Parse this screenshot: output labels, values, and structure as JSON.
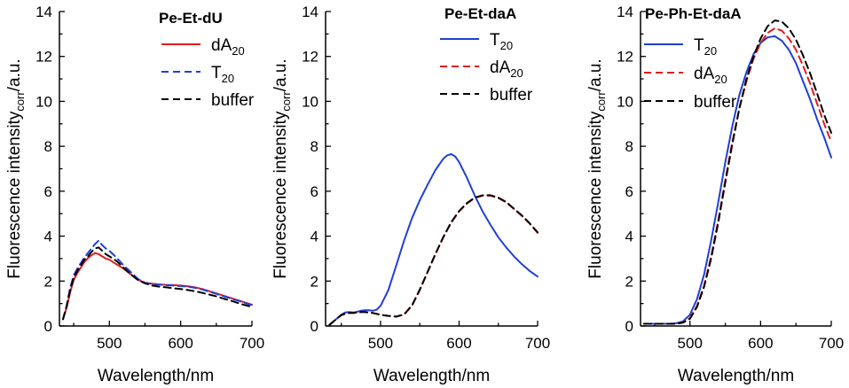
{
  "chart_data": [
    {
      "type": "line",
      "title": "Pe-Et-dU",
      "xlabel": "Wavelength/nm",
      "ylabel": "Fluorescence intensity",
      "ylabel_sub": "corr",
      "ylabel_unit": "/a.u.",
      "xlim": [
        430,
        700
      ],
      "ylim": [
        0,
        14
      ],
      "xticks": [
        500,
        600,
        700
      ],
      "yticks": [
        0,
        2,
        4,
        6,
        8,
        10,
        12,
        14
      ],
      "legend_position": "top-right",
      "series": [
        {
          "name": "dA",
          "sub": "20",
          "color": "#e31a1c",
          "dash": "solid",
          "x": [
            435,
            440,
            445,
            450,
            455,
            460,
            465,
            470,
            475,
            480,
            485,
            490,
            495,
            500,
            505,
            510,
            520,
            530,
            540,
            550,
            560,
            570,
            580,
            590,
            600,
            610,
            620,
            630,
            640,
            650,
            660,
            670,
            680,
            690,
            700
          ],
          "y": [
            0.3,
            0.8,
            1.5,
            2.05,
            2.35,
            2.6,
            2.85,
            3.02,
            3.15,
            3.25,
            3.2,
            3.1,
            3.0,
            2.95,
            2.85,
            2.75,
            2.55,
            2.3,
            2.05,
            1.93,
            1.88,
            1.85,
            1.83,
            1.82,
            1.8,
            1.77,
            1.72,
            1.65,
            1.55,
            1.45,
            1.35,
            1.25,
            1.15,
            1.05,
            0.95
          ]
        },
        {
          "name": "T",
          "sub": "20",
          "color": "#1f3fd6",
          "dash": "dashed",
          "x": [
            435,
            440,
            445,
            450,
            455,
            460,
            465,
            470,
            475,
            480,
            485,
            490,
            495,
            500,
            505,
            510,
            520,
            530,
            540,
            550,
            560,
            570,
            580,
            590,
            600,
            610,
            620,
            630,
            640,
            650,
            660,
            670,
            680,
            690,
            700
          ],
          "y": [
            0.3,
            0.9,
            1.7,
            2.25,
            2.55,
            2.8,
            3.05,
            3.25,
            3.45,
            3.65,
            3.8,
            3.6,
            3.45,
            3.35,
            3.2,
            3.05,
            2.7,
            2.4,
            2.1,
            1.92,
            1.87,
            1.84,
            1.82,
            1.8,
            1.78,
            1.75,
            1.7,
            1.63,
            1.53,
            1.43,
            1.33,
            1.23,
            1.13,
            1.03,
            0.93
          ]
        },
        {
          "name": "buffer",
          "sub": "",
          "color": "#000000",
          "dash": "dashed",
          "x": [
            435,
            440,
            445,
            450,
            455,
            460,
            465,
            470,
            475,
            480,
            485,
            490,
            495,
            500,
            505,
            510,
            520,
            530,
            540,
            550,
            560,
            570,
            580,
            590,
            600,
            610,
            620,
            630,
            640,
            650,
            660,
            670,
            680,
            690,
            700
          ],
          "y": [
            0.3,
            0.85,
            1.6,
            2.15,
            2.45,
            2.7,
            2.95,
            3.1,
            3.3,
            3.45,
            3.5,
            3.35,
            3.2,
            3.1,
            3.0,
            2.9,
            2.6,
            2.3,
            2.05,
            1.9,
            1.8,
            1.75,
            1.72,
            1.68,
            1.65,
            1.6,
            1.55,
            1.48,
            1.4,
            1.32,
            1.22,
            1.13,
            1.03,
            0.93,
            0.85
          ]
        }
      ]
    },
    {
      "type": "line",
      "title": "Pe-Et-daA",
      "xlabel": "Wavelength/nm",
      "ylabel": "Fluorescence intensity",
      "ylabel_sub": "corr",
      "ylabel_unit": "/a.u.",
      "xlim": [
        430,
        700
      ],
      "ylim": [
        0,
        14
      ],
      "xticks": [
        500,
        600,
        700
      ],
      "yticks": [
        0,
        2,
        4,
        6,
        8,
        10,
        12,
        14
      ],
      "legend_position": "top-right",
      "series": [
        {
          "name": "T",
          "sub": "20",
          "color": "#1f3fd6",
          "dash": "solid",
          "x": [
            435,
            440,
            445,
            450,
            455,
            460,
            465,
            470,
            475,
            480,
            485,
            490,
            495,
            500,
            510,
            520,
            530,
            540,
            550,
            560,
            570,
            580,
            585,
            590,
            595,
            600,
            610,
            620,
            630,
            640,
            650,
            660,
            670,
            680,
            690,
            700
          ],
          "y": [
            0.05,
            0.2,
            0.35,
            0.5,
            0.6,
            0.62,
            0.6,
            0.63,
            0.68,
            0.7,
            0.7,
            0.68,
            0.72,
            0.9,
            1.6,
            2.7,
            3.8,
            4.8,
            5.6,
            6.3,
            6.95,
            7.45,
            7.6,
            7.65,
            7.55,
            7.3,
            6.6,
            5.8,
            5.1,
            4.5,
            3.95,
            3.5,
            3.1,
            2.75,
            2.45,
            2.2
          ]
        },
        {
          "name": "dA",
          "sub": "20",
          "color": "#e31a1c",
          "dash": "dashed",
          "x": [
            435,
            440,
            445,
            450,
            455,
            460,
            465,
            470,
            475,
            480,
            485,
            490,
            500,
            510,
            520,
            530,
            540,
            550,
            560,
            570,
            580,
            590,
            600,
            610,
            620,
            630,
            640,
            650,
            660,
            670,
            680,
            690,
            700
          ],
          "y": [
            0.05,
            0.2,
            0.35,
            0.48,
            0.55,
            0.58,
            0.58,
            0.6,
            0.62,
            0.62,
            0.6,
            0.58,
            0.5,
            0.45,
            0.42,
            0.5,
            0.9,
            1.6,
            2.4,
            3.2,
            3.95,
            4.6,
            5.1,
            5.45,
            5.7,
            5.8,
            5.8,
            5.7,
            5.5,
            5.2,
            4.9,
            4.55,
            4.15
          ]
        },
        {
          "name": "buffer",
          "sub": "",
          "color": "#000000",
          "dash": "dashed",
          "x": [
            435,
            440,
            445,
            450,
            455,
            460,
            465,
            470,
            475,
            480,
            485,
            490,
            500,
            510,
            520,
            530,
            540,
            550,
            560,
            570,
            580,
            590,
            600,
            610,
            620,
            630,
            640,
            650,
            660,
            670,
            680,
            690,
            700
          ],
          "y": [
            0.05,
            0.2,
            0.35,
            0.48,
            0.55,
            0.58,
            0.58,
            0.6,
            0.62,
            0.62,
            0.6,
            0.58,
            0.5,
            0.45,
            0.42,
            0.52,
            0.92,
            1.62,
            2.42,
            3.22,
            3.97,
            4.62,
            5.12,
            5.47,
            5.72,
            5.82,
            5.82,
            5.72,
            5.52,
            5.22,
            4.92,
            4.57,
            4.17
          ]
        }
      ]
    },
    {
      "type": "line",
      "title": "Pe-Ph-Et-daA",
      "xlabel": "Wavelength/nm",
      "ylabel": "Fluorescence intensity",
      "ylabel_sub": "corr",
      "ylabel_unit": "/a.u.",
      "xlim": [
        430,
        700
      ],
      "ylim": [
        0,
        14
      ],
      "xticks": [
        500,
        600,
        700
      ],
      "yticks": [
        0,
        2,
        4,
        6,
        8,
        10,
        12,
        14
      ],
      "legend_position": "top-left",
      "series": [
        {
          "name": "T",
          "sub": "20",
          "color": "#1f3fd6",
          "dash": "solid",
          "x": [
            435,
            450,
            460,
            470,
            480,
            490,
            500,
            510,
            520,
            530,
            540,
            550,
            560,
            570,
            580,
            590,
            600,
            610,
            620,
            630,
            640,
            650,
            660,
            670,
            680,
            690,
            700
          ],
          "y": [
            0.1,
            0.1,
            0.1,
            0.1,
            0.12,
            0.2,
            0.5,
            1.2,
            2.3,
            3.8,
            5.5,
            7.3,
            8.9,
            10.3,
            11.3,
            12.1,
            12.6,
            12.85,
            12.9,
            12.7,
            12.3,
            11.7,
            10.9,
            10.1,
            9.2,
            8.4,
            7.5
          ]
        },
        {
          "name": "dA",
          "sub": "20",
          "color": "#e31a1c",
          "dash": "dashed",
          "x": [
            435,
            450,
            460,
            470,
            480,
            490,
            500,
            510,
            520,
            530,
            540,
            550,
            560,
            570,
            580,
            590,
            600,
            610,
            620,
            630,
            640,
            650,
            660,
            670,
            680,
            690,
            700
          ],
          "y": [
            0.1,
            0.1,
            0.1,
            0.1,
            0.1,
            0.15,
            0.35,
            0.9,
            1.8,
            3.1,
            4.7,
            6.5,
            8.2,
            9.7,
            10.9,
            11.9,
            12.6,
            13.05,
            13.25,
            13.15,
            12.8,
            12.3,
            11.6,
            10.8,
            9.9,
            9.0,
            8.2
          ]
        },
        {
          "name": "buffer",
          "sub": "",
          "color": "#000000",
          "dash": "dashed",
          "x": [
            435,
            450,
            460,
            470,
            480,
            490,
            500,
            510,
            520,
            530,
            540,
            550,
            560,
            570,
            580,
            590,
            600,
            610,
            620,
            630,
            640,
            650,
            660,
            670,
            680,
            690,
            700
          ],
          "y": [
            0.1,
            0.1,
            0.1,
            0.1,
            0.1,
            0.15,
            0.32,
            0.85,
            1.75,
            3.0,
            4.6,
            6.4,
            8.1,
            9.7,
            11.0,
            12.0,
            12.8,
            13.35,
            13.6,
            13.55,
            13.25,
            12.75,
            12.05,
            11.25,
            10.35,
            9.4,
            8.6
          ]
        }
      ]
    }
  ]
}
